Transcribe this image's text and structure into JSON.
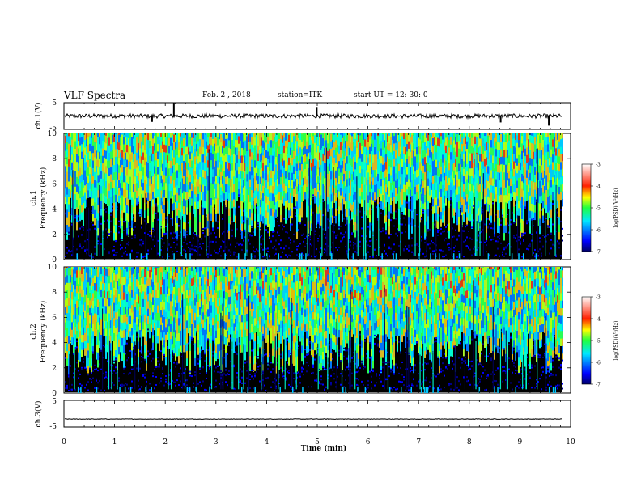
{
  "header": {
    "title": "VLF Spectra",
    "date": "Feb. 2  , 2018",
    "station": "station=ITK",
    "start": "start  UT  =   12: 30: 0"
  },
  "chart_data": [
    {
      "type": "line",
      "ylabel": "ch.1(V)",
      "x_range": [
        0,
        10
      ],
      "ylim": [
        -5,
        5
      ],
      "yticks": [
        "5",
        "-5"
      ],
      "baseline": 0.0,
      "spikes": [
        {
          "x": 2.17,
          "y": 5.0
        },
        {
          "x": 4.99,
          "y": 3.4
        },
        {
          "x": 1.74,
          "y": -2.2
        },
        {
          "x": 8.62,
          "y": -2.4
        },
        {
          "x": 9.57,
          "y": -3.6
        }
      ]
    },
    {
      "type": "heatmap",
      "ylabel": [
        "ch.1",
        "Frequency  (kHz)"
      ],
      "x_range": [
        0,
        9.83
      ],
      "ylim": [
        0,
        10
      ],
      "yticks": [
        "0",
        "2",
        "4",
        "6",
        "8",
        "10"
      ],
      "colorbar": {
        "label": "log(PSD)(V²/Hz)",
        "range": [
          -7,
          -3
        ],
        "ticks": [
          "-3",
          "-4",
          "-5",
          "-6",
          "-7"
        ]
      }
    },
    {
      "type": "heatmap",
      "ylabel": [
        "ch.2",
        "Frequency  (kHz)"
      ],
      "x_range": [
        0,
        9.83
      ],
      "ylim": [
        0,
        10
      ],
      "yticks": [
        "0",
        "2",
        "4",
        "6",
        "8",
        "10"
      ],
      "colorbar": {
        "label": "log(PSD)(V²/Hz)",
        "range": [
          -7,
          -3
        ],
        "ticks": [
          "-3",
          "-4",
          "-5",
          "-6",
          "-7"
        ]
      }
    },
    {
      "type": "line",
      "ylabel": "ch.3(V)",
      "x_range": [
        0,
        10
      ],
      "ylim": [
        -5,
        5
      ],
      "yticks": [
        "5",
        "-5"
      ],
      "baseline": -2.0
    }
  ],
  "xaxis": {
    "label": "Time  (min)",
    "range": [
      0,
      10
    ],
    "ticks": [
      "0",
      "1",
      "2",
      "3",
      "4",
      "5",
      "6",
      "7",
      "8",
      "9",
      "10"
    ]
  }
}
